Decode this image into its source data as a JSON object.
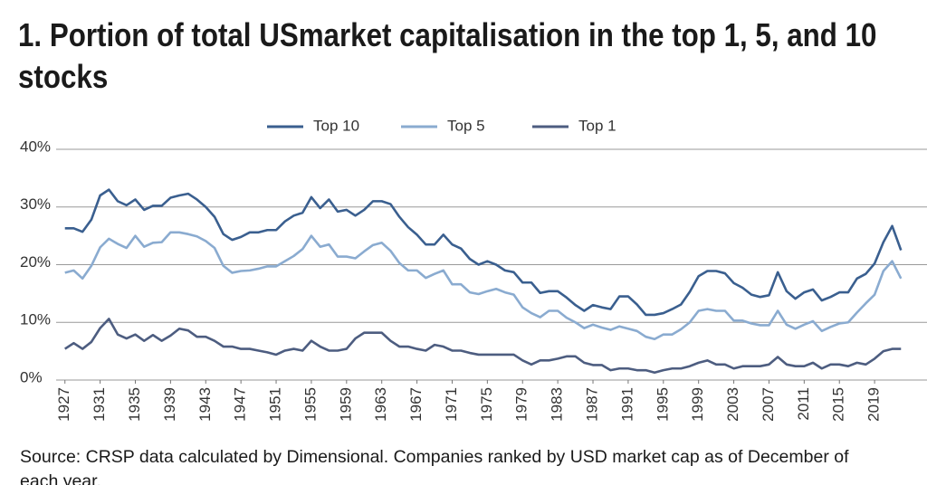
{
  "chart_data": {
    "type": "line",
    "title": "1. Portion of total USmarket capitalisation in the top 1, 5, and 10 stocks",
    "source": "Source: CRSP data calculated by Dimensional. Companies ranked by USD market cap as of December of each year.",
    "x": [
      1927,
      1928,
      1929,
      1930,
      1931,
      1932,
      1933,
      1934,
      1935,
      1936,
      1937,
      1938,
      1939,
      1940,
      1941,
      1942,
      1943,
      1944,
      1945,
      1946,
      1947,
      1948,
      1949,
      1950,
      1951,
      1952,
      1953,
      1954,
      1955,
      1956,
      1957,
      1958,
      1959,
      1960,
      1961,
      1962,
      1963,
      1964,
      1965,
      1966,
      1967,
      1968,
      1969,
      1970,
      1971,
      1972,
      1973,
      1974,
      1975,
      1976,
      1977,
      1978,
      1979,
      1980,
      1981,
      1982,
      1983,
      1984,
      1985,
      1986,
      1987,
      1988,
      1989,
      1990,
      1991,
      1992,
      1993,
      1994,
      1995,
      1996,
      1997,
      1998,
      1999,
      2000,
      2001,
      2002,
      2003,
      2004,
      2005,
      2006,
      2007,
      2008,
      2009,
      2010,
      2011,
      2012,
      2013,
      2014,
      2015,
      2016,
      2017,
      2018,
      2019,
      2020,
      2021,
      2022
    ],
    "series": [
      {
        "name": "Top 10",
        "color": "#3a5f8f",
        "values": [
          26.3,
          26.3,
          25.7,
          27.8,
          32,
          33,
          31,
          30.3,
          31.3,
          29.5,
          30.2,
          30.2,
          31.6,
          32,
          32.3,
          31.3,
          30,
          28.3,
          25.3,
          24.3,
          24.8,
          25.6,
          25.6,
          26,
          26,
          27.5,
          28.5,
          29,
          31.7,
          29.8,
          31.3,
          29.2,
          29.5,
          28.5,
          29.5,
          31,
          31,
          30.5,
          28.3,
          26.5,
          25.2,
          23.5,
          23.5,
          25.2,
          23.5,
          22.8,
          21,
          20,
          20.6,
          20,
          19,
          18.7,
          16.9,
          16.9,
          15.1,
          15.4,
          15.4,
          14.3,
          13,
          12,
          13,
          12.6,
          12.3,
          14.5,
          14.5,
          13.1,
          11.3,
          11.3,
          11.6,
          12.3,
          13.1,
          15.3,
          18,
          18.9,
          18.9,
          18.5,
          16.8,
          16,
          14.8,
          14.4,
          14.7,
          18.7,
          15.4,
          14.1,
          15.2,
          15.7,
          13.8,
          14.4,
          15.2,
          15.2,
          17.6,
          18.4,
          20.2,
          23.9,
          26.7,
          22.5
        ]
      },
      {
        "name": "Top 5",
        "color": "#8aabd0",
        "values": [
          18.6,
          19,
          17.6,
          19.8,
          23,
          24.5,
          23.6,
          22.9,
          25,
          23.1,
          23.8,
          23.9,
          25.6,
          25.6,
          25.3,
          24.9,
          24.1,
          22.9,
          19.8,
          18.6,
          18.9,
          19,
          19.3,
          19.7,
          19.7,
          20.6,
          21.5,
          22.7,
          25,
          23.1,
          23.5,
          21.4,
          21.4,
          21.1,
          22.3,
          23.4,
          23.8,
          22.4,
          20.3,
          19,
          19,
          17.7,
          18.4,
          19,
          16.6,
          16.6,
          15.2,
          14.9,
          15.4,
          15.8,
          15.2,
          14.8,
          12.6,
          11.6,
          10.9,
          12,
          12,
          10.8,
          10,
          9,
          9.6,
          9.1,
          8.7,
          9.3,
          8.9,
          8.5,
          7.5,
          7.1,
          7.9,
          7.9,
          8.8,
          10,
          12,
          12.3,
          12,
          12,
          10.3,
          10.3,
          9.8,
          9.5,
          9.5,
          12,
          9.6,
          8.9,
          9.6,
          10.2,
          8.5,
          9.2,
          9.8,
          10,
          11.7,
          13.3,
          14.8,
          18.9,
          20.6,
          17.6
        ]
      },
      {
        "name": "Top 1",
        "color": "#4d5d80",
        "values": [
          5.4,
          6.4,
          5.4,
          6.6,
          9,
          10.6,
          7.9,
          7.2,
          7.9,
          6.8,
          7.8,
          6.8,
          7.7,
          8.9,
          8.6,
          7.5,
          7.5,
          6.8,
          5.8,
          5.8,
          5.4,
          5.4,
          5.1,
          4.8,
          4.4,
          5.1,
          5.4,
          5.1,
          6.8,
          5.8,
          5.1,
          5.1,
          5.4,
          7.2,
          8.2,
          8.2,
          8.2,
          6.8,
          5.8,
          5.8,
          5.4,
          5.1,
          6.1,
          5.8,
          5.1,
          5.1,
          4.7,
          4.4,
          4.4,
          4.4,
          4.4,
          4.4,
          3.4,
          2.7,
          3.4,
          3.4,
          3.7,
          4.1,
          4.1,
          3,
          2.6,
          2.6,
          1.7,
          2,
          2,
          1.7,
          1.7,
          1.3,
          1.7,
          2,
          2,
          2.4,
          3,
          3.4,
          2.7,
          2.7,
          2,
          2.4,
          2.4,
          2.4,
          2.7,
          4,
          2.7,
          2.4,
          2.4,
          3,
          2,
          2.7,
          2.7,
          2.4,
          3,
          2.7,
          3.7,
          5,
          5.4,
          5.4
        ]
      }
    ],
    "xlim": [
      1926,
      2023
    ],
    "xticks": [
      1927,
      1931,
      1935,
      1939,
      1943,
      1947,
      1951,
      1955,
      1959,
      1963,
      1967,
      1971,
      1975,
      1979,
      1983,
      1987,
      1991,
      1995,
      1999,
      2003,
      2007,
      2011,
      2015,
      2019
    ],
    "ylim": [
      0,
      40
    ],
    "yticks": [
      {
        "value": 0,
        "label": "0%"
      },
      {
        "value": 10,
        "label": "10%"
      },
      {
        "value": 20,
        "label": "20%"
      },
      {
        "value": 30,
        "label": "30%"
      },
      {
        "value": 40,
        "label": "40%"
      }
    ],
    "grid": true,
    "legend": "top"
  }
}
